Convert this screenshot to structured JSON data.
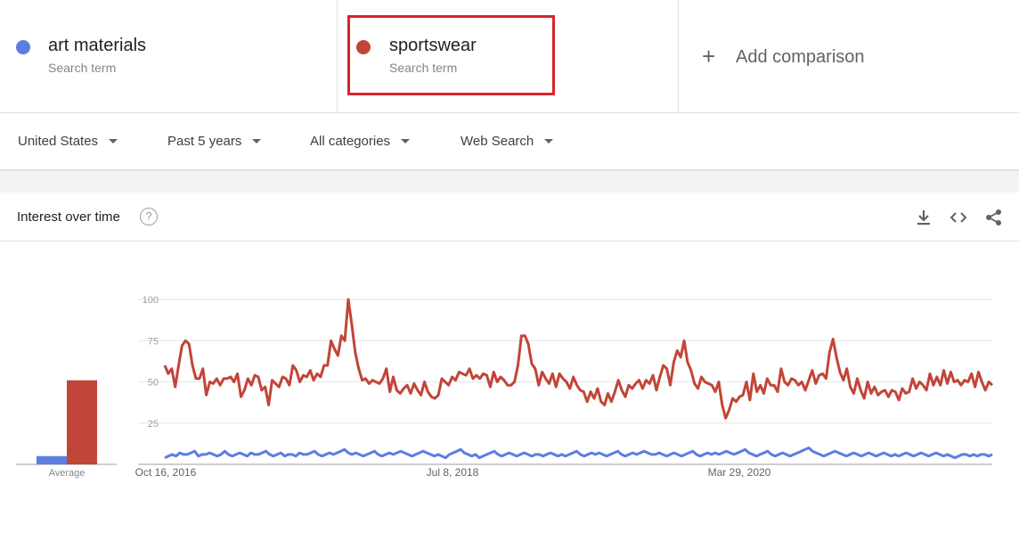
{
  "terms": [
    {
      "name": "art materials",
      "sub": "Search term",
      "color": "#5c7ee0"
    },
    {
      "name": "sportswear",
      "sub": "Search term",
      "color": "#c14538"
    }
  ],
  "add_comparison": {
    "icon": "plus-icon",
    "label": "Add comparison"
  },
  "filters": [
    {
      "label": "United States"
    },
    {
      "label": "Past 5 years"
    },
    {
      "label": "All categories"
    },
    {
      "label": "Web Search"
    }
  ],
  "card": {
    "title": "Interest over time",
    "help_icon": "?",
    "icons": [
      "download-icon",
      "embed-code-icon",
      "share-icon"
    ]
  },
  "chart_data": {
    "type": "line",
    "x_tick_labels": [
      "Oct 16, 2016",
      "Jul 8, 2018",
      "Mar 29, 2020"
    ],
    "y_tick_labels": [
      "100",
      "75",
      "50",
      "25"
    ],
    "ylim": [
      0,
      100
    ],
    "grid": true,
    "average_label": "Average",
    "averages": [
      {
        "name": "art materials",
        "value": 5
      },
      {
        "name": "sportswear",
        "value": 51
      }
    ],
    "series": [
      {
        "name": "art materials",
        "color": "#5c7ee0",
        "values": [
          4,
          5,
          6,
          5,
          7,
          6,
          6,
          7,
          8,
          5,
          6,
          6,
          7,
          6,
          5,
          6,
          8,
          6,
          5,
          6,
          7,
          6,
          5,
          7,
          6,
          6,
          7,
          8,
          6,
          5,
          6,
          7,
          5,
          6,
          6,
          5,
          7,
          6,
          6,
          7,
          8,
          6,
          5,
          6,
          7,
          6,
          7,
          8,
          9,
          7,
          6,
          7,
          6,
          5,
          6,
          7,
          8,
          6,
          5,
          6,
          7,
          6,
          7,
          8,
          7,
          6,
          5,
          6,
          7,
          8,
          7,
          6,
          5,
          6,
          5,
          4,
          6,
          7,
          8,
          9,
          7,
          6,
          5,
          6,
          4,
          5,
          6,
          7,
          8,
          6,
          5,
          6,
          7,
          6,
          5,
          6,
          7,
          6,
          5,
          6,
          6,
          5,
          6,
          7,
          6,
          5,
          6,
          5,
          6,
          7,
          8,
          6,
          5,
          6,
          7,
          6,
          7,
          6,
          5,
          6,
          7,
          8,
          6,
          5,
          6,
          7,
          6,
          7,
          8,
          7,
          6,
          6,
          7,
          6,
          5,
          6,
          7,
          6,
          5,
          6,
          7,
          8,
          6,
          5,
          6,
          7,
          6,
          7,
          6,
          7,
          8,
          7,
          6,
          7,
          8,
          9,
          7,
          6,
          5,
          6,
          7,
          8,
          6,
          5,
          6,
          7,
          6,
          5,
          6,
          7,
          8,
          9,
          10,
          8,
          7,
          6,
          5,
          6,
          7,
          8,
          7,
          6,
          5,
          6,
          7,
          6,
          5,
          6,
          7,
          6,
          5,
          6,
          7,
          6,
          5,
          6,
          5,
          6,
          7,
          6,
          5,
          6,
          7,
          6,
          5,
          6,
          7,
          6,
          5,
          6,
          5,
          4,
          5,
          6,
          6,
          5,
          6,
          5,
          6,
          6,
          5,
          6
        ]
      },
      {
        "name": "sportswear",
        "color": "#c14538",
        "values": [
          60,
          55,
          58,
          47,
          60,
          72,
          75,
          73,
          60,
          52,
          52,
          58,
          42,
          50,
          49,
          52,
          48,
          52,
          52,
          53,
          50,
          55,
          41,
          45,
          52,
          48,
          54,
          53,
          45,
          47,
          36,
          51,
          49,
          47,
          53,
          52,
          48,
          60,
          57,
          50,
          54,
          53,
          57,
          51,
          55,
          53,
          60,
          60,
          75,
          70,
          66,
          78,
          75,
          100,
          85,
          68,
          58,
          51,
          52,
          49,
          51,
          50,
          49,
          52,
          58,
          44,
          53,
          45,
          43,
          46,
          48,
          43,
          49,
          45,
          42,
          50,
          44,
          41,
          40,
          42,
          52,
          50,
          48,
          53,
          51,
          56,
          55,
          54,
          58,
          52,
          54,
          52,
          55,
          54,
          47,
          56,
          50,
          53,
          51,
          48,
          48,
          50,
          60,
          78,
          78,
          73,
          61,
          58,
          48,
          56,
          52,
          49,
          55,
          47,
          55,
          52,
          50,
          46,
          53,
          48,
          45,
          44,
          38,
          44,
          40,
          46,
          38,
          36,
          43,
          38,
          44,
          51,
          45,
          41,
          48,
          46,
          49,
          51,
          46,
          51,
          49,
          54,
          45,
          53,
          60,
          58,
          48,
          62,
          69,
          65,
          75,
          62,
          57,
          49,
          46,
          53,
          50,
          49,
          48,
          44,
          50,
          36,
          28,
          33,
          40,
          38,
          41,
          42,
          50,
          39,
          55,
          44,
          48,
          43,
          52,
          48,
          48,
          44,
          58,
          50,
          48,
          52,
          51,
          48,
          50,
          45,
          51,
          57,
          49,
          54,
          55,
          52,
          68,
          76,
          65,
          56,
          51,
          58,
          47,
          43,
          52,
          45,
          40,
          50,
          43,
          47,
          42,
          44,
          45,
          41,
          45,
          44,
          39,
          46,
          43,
          44,
          52,
          46,
          50,
          48,
          45,
          55,
          48,
          53,
          48,
          57,
          49,
          56,
          50,
          51,
          48,
          51,
          50,
          55,
          47,
          56,
          50,
          45,
          50,
          48
        ]
      }
    ]
  }
}
